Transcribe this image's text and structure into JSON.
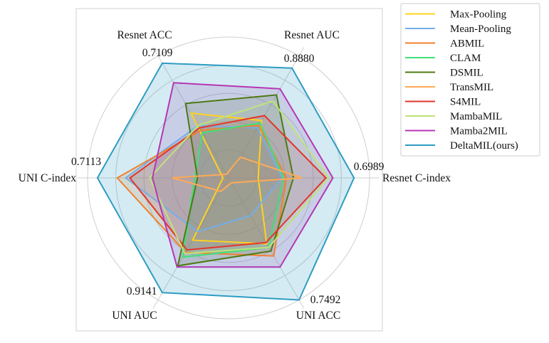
{
  "chart_data": {
    "type": "radar",
    "axes": [
      "Resnet C-index",
      "Resnet AUC",
      "Resnet ACC",
      "UNI C-index",
      "UNI AUC",
      "UNI ACC"
    ],
    "axis_max_labels": [
      "0.6989",
      "0.8880",
      "0.7109",
      "0.7113",
      "0.9141",
      "0.7492"
    ],
    "radial_scale": "normalized per axis (0 = center, 1 = outer circle)",
    "grid": true,
    "legend_position": "top-right, outside",
    "series": [
      {
        "name": "Max-Pooling",
        "color": "#FFD21F",
        "values": [
          0.21,
          0.47,
          0.53,
          0.04,
          0.51,
          0.54
        ]
      },
      {
        "name": "Mean-Pooling",
        "color": "#74AEE8",
        "values": [
          0.38,
          0.41,
          0.43,
          0.73,
          0.44,
          0.31
        ]
      },
      {
        "name": "ABMIL",
        "color": "#F0822E",
        "values": [
          0.41,
          0.43,
          0.39,
          0.79,
          0.61,
          0.64
        ]
      },
      {
        "name": "CLAM",
        "color": "#3FE07A",
        "values": [
          0.39,
          0.45,
          0.37,
          0.24,
          0.65,
          0.57
        ]
      },
      {
        "name": "DSMIL",
        "color": "#4D7A12",
        "values": [
          0.46,
          0.68,
          0.61,
          0.22,
          0.72,
          0.6
        ]
      },
      {
        "name": "TransMIL",
        "color": "#FFAA55",
        "values": [
          0.52,
          0.17,
          0.03,
          0.4,
          0.11,
          0.04
        ]
      },
      {
        "name": "S4MIL",
        "color": "#E2362A",
        "values": [
          0.69,
          0.51,
          0.41,
          0.7,
          0.59,
          0.53
        ]
      },
      {
        "name": "MambaMIL",
        "color": "#BEE47A",
        "values": [
          0.71,
          0.63,
          0.43,
          0.56,
          0.62,
          0.57
        ]
      },
      {
        "name": "Mamba2MIL",
        "color": "#B437B4",
        "values": [
          0.74,
          0.73,
          0.78,
          0.54,
          0.73,
          0.73
        ]
      },
      {
        "name": "DeltaMIL(ours)",
        "color": "#2E9CC2",
        "values": [
          0.89,
          0.9,
          0.94,
          0.93,
          0.94,
          1.0
        ]
      }
    ]
  }
}
